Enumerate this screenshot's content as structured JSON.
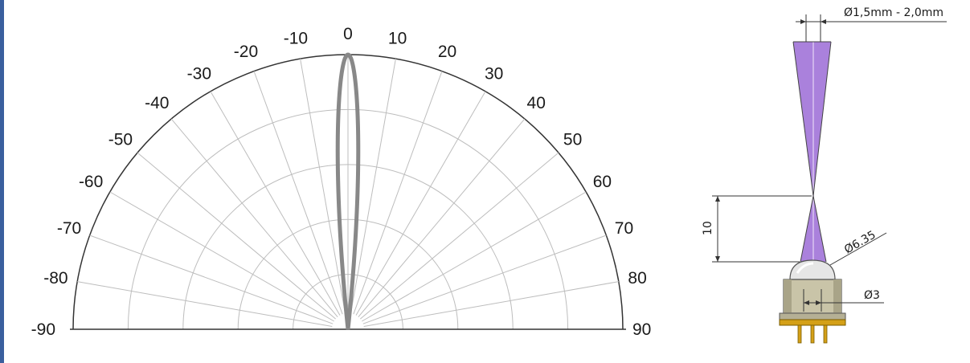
{
  "colors": {
    "frame": "#3a5f9e",
    "grid": "#bdbdbd",
    "outline": "#333333",
    "beam_curve": "#888888",
    "beam_fill": "#9b6bd6",
    "pins": "#d4a017"
  },
  "polar_diagram": {
    "angle_labels": [
      "-90",
      "-80",
      "-70",
      "-60",
      "-50",
      "-40",
      "-30",
      "-20",
      "-10",
      "0",
      "10",
      "20",
      "30",
      "40",
      "50",
      "60",
      "70",
      "80",
      "90"
    ],
    "ring_count": 5,
    "beam_half_angle_deg": 6
  },
  "dimensions": {
    "top_diameter": "Ø1,5mm - 2,0mm",
    "focus_distance": "10",
    "lens_diameter": "Ø6.35",
    "body_diameter": "Ø3"
  }
}
